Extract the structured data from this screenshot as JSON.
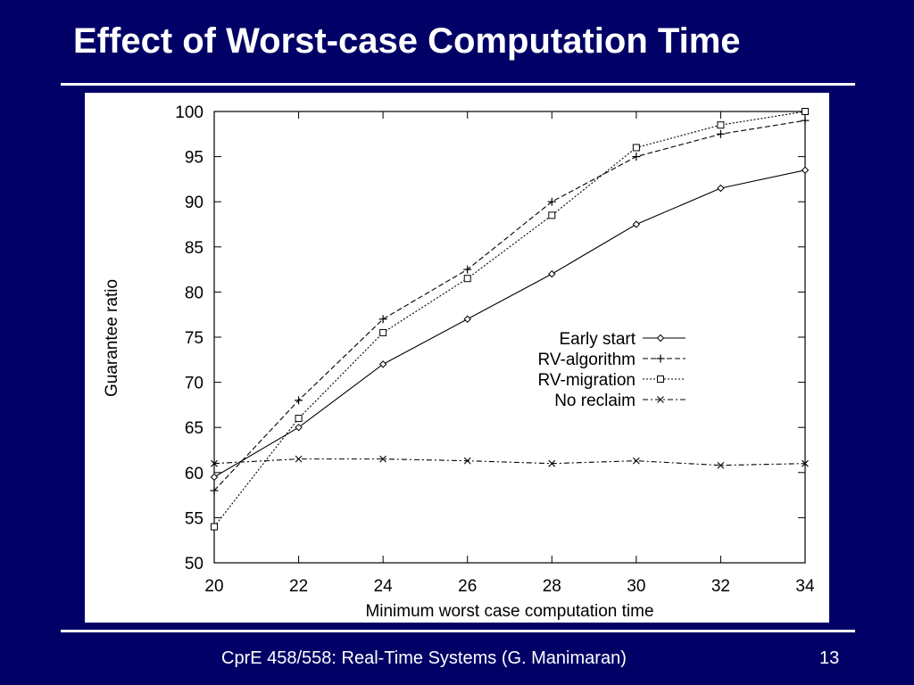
{
  "slide": {
    "title": "Effect of Worst-case Computation Time",
    "footer": "CprE 458/558: Real-Time Systems (G. Manimaran)",
    "page_number": "13"
  },
  "colors": {
    "background": "#000066",
    "text": "#ffffff",
    "plot": "#000000"
  },
  "chart_data": {
    "type": "line",
    "title": "",
    "xlabel": "Minimum worst case computation time",
    "ylabel": "Guarantee ratio",
    "xlim": [
      20,
      34
    ],
    "ylim": [
      50,
      100
    ],
    "xticks": [
      20,
      22,
      24,
      26,
      28,
      30,
      32,
      34
    ],
    "yticks": [
      50,
      55,
      60,
      65,
      70,
      75,
      80,
      85,
      90,
      95,
      100
    ],
    "x": [
      20,
      22,
      24,
      26,
      28,
      30,
      32,
      34
    ],
    "legend_position": "right-middle",
    "grid": false,
    "series": [
      {
        "name": "Early start",
        "marker": "diamond",
        "line": "solid",
        "values": [
          59.5,
          65,
          72,
          77,
          82,
          87.5,
          91.5,
          93.5
        ]
      },
      {
        "name": "RV-algorithm",
        "marker": "plus",
        "line": "dashed",
        "values": [
          58,
          68,
          77,
          82.5,
          90,
          95,
          97.5,
          99
        ]
      },
      {
        "name": "RV-migration",
        "marker": "square",
        "line": "dotted",
        "values": [
          54,
          66,
          75.5,
          81.5,
          88.5,
          96,
          98.5,
          100
        ]
      },
      {
        "name": "No reclaim",
        "marker": "cross",
        "line": "dashdot",
        "values": [
          61,
          61.5,
          61.5,
          61.3,
          61,
          61.3,
          60.8,
          61
        ]
      }
    ]
  }
}
